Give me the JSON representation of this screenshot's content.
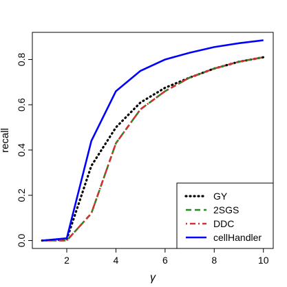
{
  "chart_data": {
    "type": "line",
    "title": "",
    "xlabel": "γ",
    "ylabel": "recall",
    "xlim": [
      0.6,
      10.4
    ],
    "ylim": [
      -0.035,
      0.92
    ],
    "x_ticks": [
      2,
      4,
      6,
      8,
      10
    ],
    "y_ticks": [
      0.0,
      0.2,
      0.4,
      0.6,
      0.8
    ],
    "x_tick_labels": [
      "2",
      "4",
      "6",
      "8",
      "10"
    ],
    "y_tick_labels": [
      "0.0",
      "0.2",
      "0.4",
      "0.6",
      "0.8"
    ],
    "legend_position": "bottom-right",
    "x": [
      1,
      2,
      3,
      4,
      5,
      6,
      7,
      8,
      9,
      10
    ],
    "series": [
      {
        "name": "GY",
        "color": "#000000",
        "style": "dotted",
        "values": [
          0.0,
          0.005,
          0.33,
          0.5,
          0.61,
          0.675,
          0.72,
          0.76,
          0.79,
          0.81
        ]
      },
      {
        "name": "2SGS",
        "color": "#228b22",
        "style": "dashed",
        "values": [
          0.0,
          0.0,
          0.12,
          0.43,
          0.58,
          0.66,
          0.72,
          0.76,
          0.79,
          0.81
        ]
      },
      {
        "name": "DDC",
        "color": "#cd3333",
        "style": "dotdash",
        "values": [
          0.0,
          0.0,
          0.12,
          0.43,
          0.58,
          0.66,
          0.72,
          0.76,
          0.79,
          0.81
        ]
      },
      {
        "name": "cellHandler",
        "color": "#0000ff",
        "style": "solid",
        "values": [
          0.0,
          0.01,
          0.44,
          0.66,
          0.75,
          0.8,
          0.83,
          0.855,
          0.872,
          0.885
        ]
      }
    ]
  }
}
